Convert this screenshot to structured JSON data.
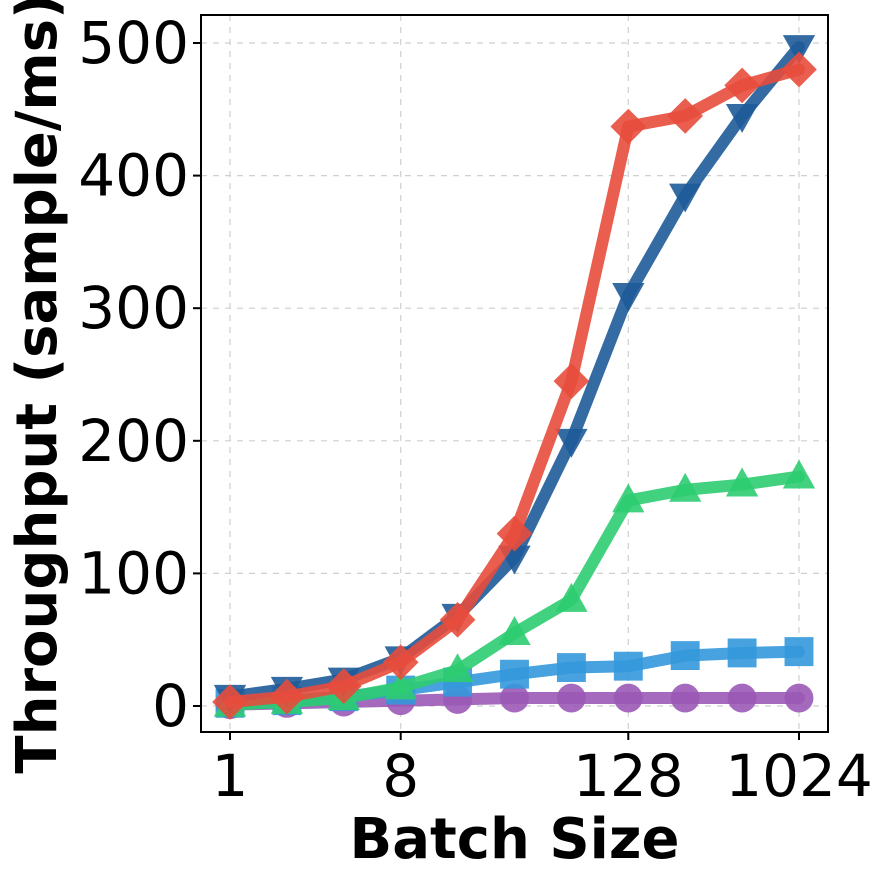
{
  "chart_data": {
    "type": "line",
    "xlabel": "Batch Size",
    "ylabel": "Throughput (sample/ms)",
    "x_scale": "log2",
    "x": [
      1,
      2,
      4,
      8,
      16,
      32,
      64,
      128,
      256,
      512,
      1024
    ],
    "x_ticks": [
      1,
      8,
      128,
      1024
    ],
    "x_tick_labels": [
      "1",
      "8",
      "128",
      "1024"
    ],
    "xlim": [
      0.7,
      1500
    ],
    "ylim": [
      -20,
      520
    ],
    "y_ticks": [
      0,
      100,
      200,
      300,
      400,
      500
    ],
    "y_tick_labels": [
      "0",
      "100",
      "200",
      "300",
      "400",
      "500"
    ],
    "grid": true,
    "legend": false,
    "series": [
      {
        "color": "#9b59b6",
        "marker": "circle",
        "values": [
          1,
          2,
          3,
          4,
          5,
          6,
          6,
          6,
          6,
          6,
          6
        ]
      },
      {
        "color": "#3498db",
        "marker": "square",
        "values": [
          2,
          4,
          7,
          12,
          18,
          24,
          29,
          30,
          38,
          40,
          41
        ]
      },
      {
        "color": "#2ecc71",
        "marker": "triangle-up",
        "values": [
          1,
          3,
          6,
          14,
          27,
          55,
          80,
          155,
          163,
          167,
          173
        ]
      },
      {
        "color": "#1f5b99",
        "marker": "triangle-down",
        "values": [
          7,
          13,
          20,
          36,
          68,
          112,
          200,
          310,
          385,
          445,
          497
        ]
      },
      {
        "color": "#e74c3c",
        "marker": "diamond",
        "values": [
          3,
          7,
          15,
          33,
          65,
          130,
          245,
          437,
          445,
          468,
          480
        ]
      }
    ]
  }
}
